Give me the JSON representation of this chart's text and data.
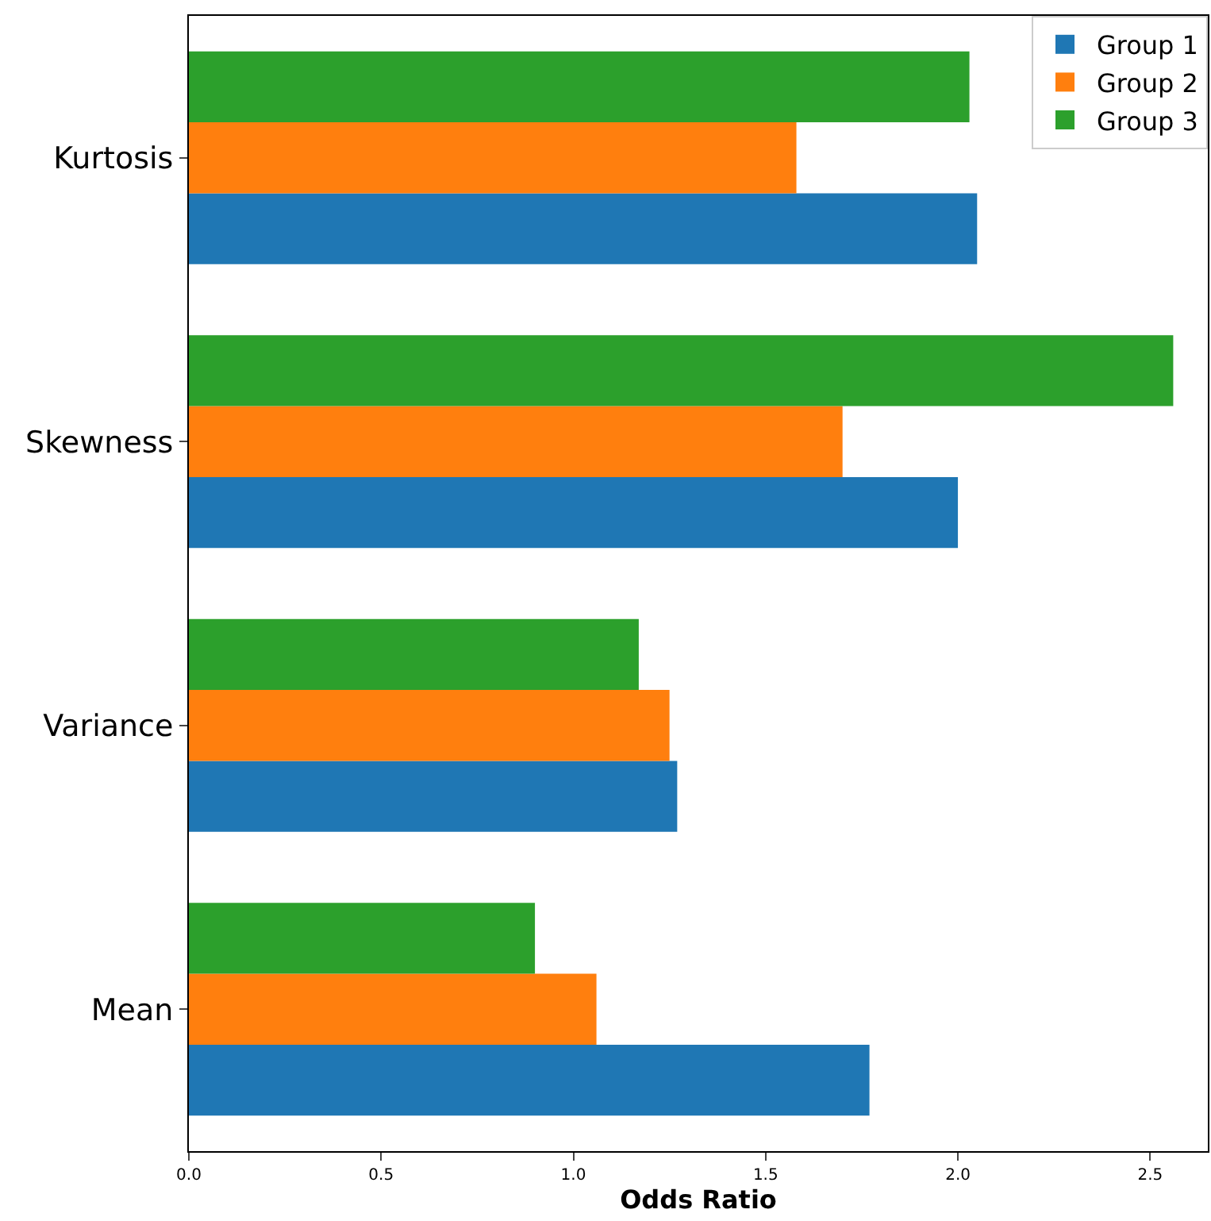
{
  "chart_data": {
    "type": "bar",
    "orientation": "horizontal",
    "xlabel": "Odds Ratio",
    "categories": [
      "Kurtosis",
      "Skewness",
      "Variance",
      "Mean"
    ],
    "series": [
      {
        "name": "Group 1",
        "color": "#1f77b4",
        "values": [
          2.05,
          2.0,
          1.27,
          1.77
        ]
      },
      {
        "name": "Group 2",
        "color": "#ff7f0e",
        "values": [
          1.58,
          1.7,
          1.25,
          1.06
        ]
      },
      {
        "name": "Group 3",
        "color": "#2ca02c",
        "values": [
          2.03,
          2.56,
          1.17,
          0.9
        ]
      }
    ],
    "xlim": [
      0,
      2.65
    ],
    "xticks": [
      {
        "value": 0,
        "label": "0.0"
      },
      {
        "value": 0.5,
        "label": "0.5"
      },
      {
        "value": 1,
        "label": "1.0"
      },
      {
        "value": 1.5,
        "label": "1.5"
      },
      {
        "value": 2,
        "label": "2.0"
      },
      {
        "value": 2.5,
        "label": "2.5"
      }
    ],
    "legend": "top right"
  }
}
